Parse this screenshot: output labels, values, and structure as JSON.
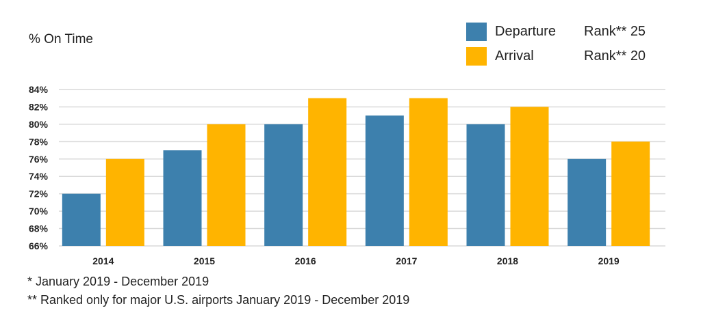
{
  "chart_data": {
    "type": "bar",
    "title": "",
    "ylabel": "% On Time",
    "xlabel": "",
    "categories": [
      "2014",
      "2015",
      "2016",
      "2017",
      "2018",
      "2019"
    ],
    "series": [
      {
        "name": "Departure",
        "rank_label": "Rank** 25",
        "color": "#3d80ad",
        "values": [
          72,
          77,
          80,
          81,
          80,
          76
        ]
      },
      {
        "name": "Arrival",
        "rank_label": "Rank** 20",
        "color": "#ffb400",
        "values": [
          76,
          80,
          83,
          83,
          82,
          78
        ]
      }
    ],
    "ylim": [
      66,
      84
    ],
    "yticks": [
      "66%",
      "68%",
      "70%",
      "72%",
      "74%",
      "76%",
      "78%",
      "80%",
      "82%",
      "84%"
    ],
    "ytick_values": [
      66,
      68,
      70,
      72,
      74,
      76,
      78,
      80,
      82,
      84
    ],
    "grid": true,
    "legend_position": "top-right"
  },
  "footnotes": [
    "* January 2019 - December 2019",
    "** Ranked only for major U.S. airports January 2019 - December 2019"
  ]
}
